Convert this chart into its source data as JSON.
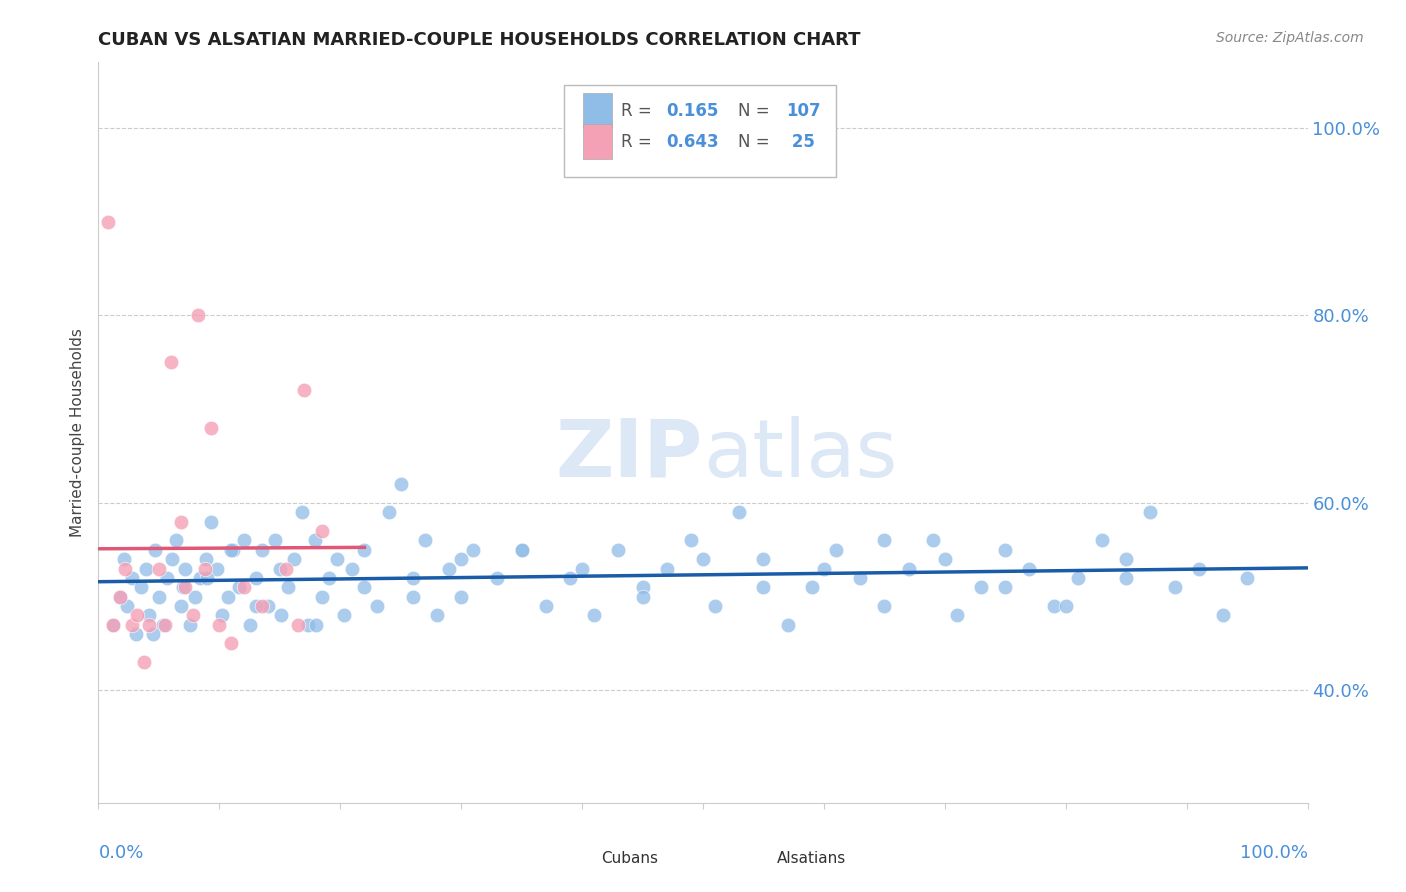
{
  "title": "CUBAN VS ALSATIAN MARRIED-COUPLE HOUSEHOLDS CORRELATION CHART",
  "source": "Source: ZipAtlas.com",
  "ylabel": "Married-couple Households",
  "r_cuban": 0.165,
  "n_cuban": 107,
  "r_alsatian": 0.643,
  "n_alsatian": 25,
  "color_cuban": "#90bce8",
  "color_alsatian": "#f4a0b5",
  "line_color_cuban": "#1a5ca8",
  "line_color_alsatian": "#e05878",
  "watermark_zip": "ZIP",
  "watermark_atlas": "atlas",
  "watermark_color": "#dce8f5",
  "background_color": "#ffffff",
  "grid_color": "#cccccc",
  "title_color": "#222222",
  "axis_label_color": "#4a90d9",
  "yticks": [
    40,
    60,
    80,
    100
  ],
  "ylim_low": 28,
  "ylim_high": 107,
  "xlim_low": 0,
  "xlim_high": 100,
  "cuban_x": [
    1.2,
    1.8,
    2.1,
    2.4,
    2.8,
    3.1,
    3.5,
    3.9,
    4.2,
    4.7,
    5.0,
    5.3,
    5.7,
    6.1,
    6.4,
    6.8,
    7.2,
    7.6,
    8.0,
    8.4,
    8.9,
    9.3,
    9.8,
    10.2,
    10.7,
    11.1,
    11.6,
    12.0,
    12.5,
    13.0,
    13.5,
    14.0,
    14.6,
    15.1,
    15.7,
    16.2,
    16.8,
    17.3,
    17.9,
    18.5,
    19.1,
    19.7,
    20.3,
    21.0,
    22.0,
    23.0,
    24.0,
    25.0,
    26.0,
    27.0,
    28.0,
    29.0,
    30.0,
    31.0,
    33.0,
    35.0,
    37.0,
    39.0,
    41.0,
    43.0,
    45.0,
    47.0,
    49.0,
    51.0,
    53.0,
    55.0,
    57.0,
    59.0,
    61.0,
    63.0,
    65.0,
    67.0,
    69.0,
    71.0,
    73.0,
    75.0,
    77.0,
    79.0,
    81.0,
    83.0,
    85.0,
    87.0,
    89.0,
    91.0,
    93.0,
    95.0,
    4.5,
    7.0,
    9.0,
    11.0,
    13.0,
    15.0,
    18.0,
    22.0,
    26.0,
    30.0,
    35.0,
    40.0,
    45.0,
    50.0,
    55.0,
    60.0,
    65.0,
    70.0,
    75.0,
    80.0,
    85.0
  ],
  "cuban_y": [
    47.0,
    50.0,
    54.0,
    49.0,
    52.0,
    46.0,
    51.0,
    53.0,
    48.0,
    55.0,
    50.0,
    47.0,
    52.0,
    54.0,
    56.0,
    49.0,
    53.0,
    47.0,
    50.0,
    52.0,
    54.0,
    58.0,
    53.0,
    48.0,
    50.0,
    55.0,
    51.0,
    56.0,
    47.0,
    52.0,
    55.0,
    49.0,
    56.0,
    48.0,
    51.0,
    54.0,
    59.0,
    47.0,
    56.0,
    50.0,
    52.0,
    54.0,
    48.0,
    53.0,
    55.0,
    49.0,
    59.0,
    62.0,
    52.0,
    56.0,
    48.0,
    53.0,
    50.0,
    55.0,
    52.0,
    55.0,
    49.0,
    52.0,
    48.0,
    55.0,
    51.0,
    53.0,
    56.0,
    49.0,
    59.0,
    54.0,
    47.0,
    51.0,
    55.0,
    52.0,
    49.0,
    53.0,
    56.0,
    48.0,
    51.0,
    55.0,
    53.0,
    49.0,
    52.0,
    56.0,
    54.0,
    59.0,
    51.0,
    53.0,
    48.0,
    52.0,
    46.0,
    51.0,
    52.0,
    55.0,
    49.0,
    53.0,
    47.0,
    51.0,
    50.0,
    54.0,
    55.0,
    53.0,
    50.0,
    54.0,
    51.0,
    53.0,
    56.0,
    54.0,
    51.0,
    49.0,
    52.0
  ],
  "alsatian_x": [
    0.8,
    1.2,
    1.8,
    2.2,
    2.8,
    3.2,
    3.8,
    4.2,
    5.0,
    5.5,
    6.0,
    6.8,
    7.2,
    7.8,
    8.2,
    8.8,
    9.3,
    10.0,
    11.0,
    12.0,
    13.5,
    15.5,
    17.0,
    18.5,
    16.5
  ],
  "alsatian_y": [
    90.0,
    47.0,
    50.0,
    53.0,
    47.0,
    48.0,
    43.0,
    47.0,
    53.0,
    47.0,
    75.0,
    58.0,
    51.0,
    48.0,
    80.0,
    53.0,
    68.0,
    47.0,
    45.0,
    51.0,
    49.0,
    53.0,
    72.0,
    57.0,
    47.0
  ]
}
